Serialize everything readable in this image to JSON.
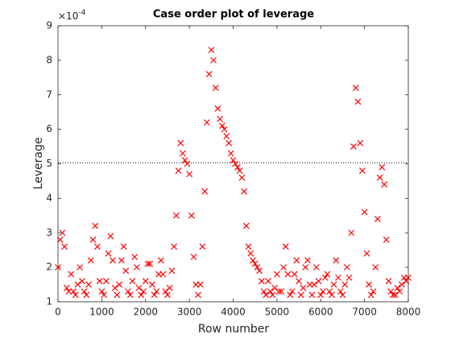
{
  "chart_data": {
    "type": "scatter",
    "title": "Case order plot of leverage",
    "xlabel": "Row number",
    "ylabel": "Leverage",
    "exponent_base": "×10",
    "exponent_power": "-4",
    "xlim": [
      0,
      8000
    ],
    "xticks": [
      0,
      1000,
      2000,
      3000,
      4000,
      5000,
      6000,
      7000,
      8000
    ],
    "ylim": [
      1,
      9
    ],
    "yticks": [
      1,
      2,
      3,
      4,
      5,
      6,
      7,
      8,
      9
    ],
    "reference_line": 5.03,
    "series": [
      {
        "color": "#ff0000",
        "x": [
          0,
          50,
          100,
          150,
          200,
          250,
          300,
          350,
          400,
          450,
          500,
          550,
          600,
          650,
          700,
          750,
          800,
          850,
          900,
          950,
          1000,
          1050,
          1100,
          1150,
          1200,
          1250,
          1300,
          1350,
          1400,
          1450,
          1500,
          1550,
          1600,
          1650,
          1700,
          1750,
          1800,
          1850,
          1900,
          1950,
          2000,
          2050,
          2100,
          2150,
          2200,
          2250,
          2300,
          2350,
          2400,
          2450,
          2500,
          2550,
          2600,
          2650,
          2700,
          2750,
          2800,
          2850,
          2900,
          2950,
          3000,
          3050,
          3100,
          3150,
          3200,
          3250,
          3300,
          3350,
          3400,
          3450,
          3500,
          3550,
          3600,
          3650,
          3700,
          3750,
          3800,
          3850,
          3900,
          3950,
          4000,
          4050,
          4100,
          4150,
          4200,
          4250,
          4300,
          4350,
          4400,
          4450,
          4500,
          4550,
          4600,
          4650,
          4700,
          4750,
          4800,
          4850,
          4900,
          4950,
          5000,
          5050,
          5100,
          5150,
          5200,
          5250,
          5300,
          5350,
          5400,
          5450,
          5500,
          5550,
          5600,
          5650,
          5700,
          5750,
          5800,
          5850,
          5900,
          5950,
          6000,
          6050,
          6100,
          6150,
          6200,
          6250,
          6300,
          6350,
          6400,
          6450,
          6500,
          6550,
          6600,
          6650,
          6700,
          6750,
          6800,
          6850,
          6900,
          6950,
          7000,
          7050,
          7100,
          7150,
          7200,
          7250,
          7300,
          7350,
          7400,
          7450,
          7500,
          7550,
          7600,
          7650,
          7700,
          7750,
          7800,
          7850,
          7900,
          7950,
          8000
        ],
        "values": [
          2.0,
          2.8,
          3.0,
          2.6,
          1.4,
          1.3,
          1.8,
          1.3,
          1.2,
          1.5,
          2.0,
          1.6,
          1.3,
          1.2,
          1.5,
          2.2,
          2.8,
          3.2,
          2.6,
          1.6,
          1.3,
          1.2,
          1.6,
          2.4,
          2.9,
          2.2,
          1.4,
          1.2,
          1.5,
          2.2,
          2.6,
          1.9,
          1.3,
          1.2,
          1.6,
          2.3,
          2.0,
          1.4,
          1.2,
          1.3,
          1.6,
          2.1,
          2.1,
          1.5,
          1.2,
          1.3,
          1.8,
          2.2,
          1.8,
          1.3,
          1.2,
          1.4,
          1.9,
          2.6,
          3.5,
          4.8,
          5.6,
          5.3,
          5.1,
          5.0,
          4.7,
          3.5,
          2.3,
          1.5,
          1.2,
          1.5,
          2.6,
          4.2,
          6.2,
          7.6,
          8.3,
          8.0,
          7.2,
          6.6,
          6.3,
          6.1,
          6.0,
          5.8,
          5.6,
          5.3,
          5.1,
          5.0,
          4.9,
          4.8,
          4.6,
          4.2,
          3.2,
          2.6,
          2.4,
          2.2,
          2.1,
          2.0,
          1.9,
          1.6,
          1.3,
          1.2,
          1.6,
          1.3,
          1.2,
          1.4,
          1.8,
          1.3,
          1.3,
          2.0,
          2.6,
          1.8,
          1.2,
          1.3,
          1.8,
          2.2,
          1.6,
          1.2,
          1.4,
          2.0,
          2.2,
          1.5,
          1.2,
          1.5,
          2.0,
          1.6,
          1.2,
          1.3,
          1.7,
          1.8,
          1.3,
          1.2,
          1.5,
          2.2,
          1.7,
          1.3,
          1.2,
          1.5,
          2.0,
          1.7,
          3.0,
          5.5,
          7.2,
          6.8,
          5.6,
          4.8,
          3.6,
          2.4,
          1.5,
          1.2,
          1.3,
          2.0,
          3.4,
          4.6,
          4.9,
          4.4,
          2.8,
          1.6,
          1.3,
          1.2,
          1.2,
          1.4,
          1.3,
          1.5,
          1.7,
          1.6,
          1.7
        ]
      }
    ]
  }
}
